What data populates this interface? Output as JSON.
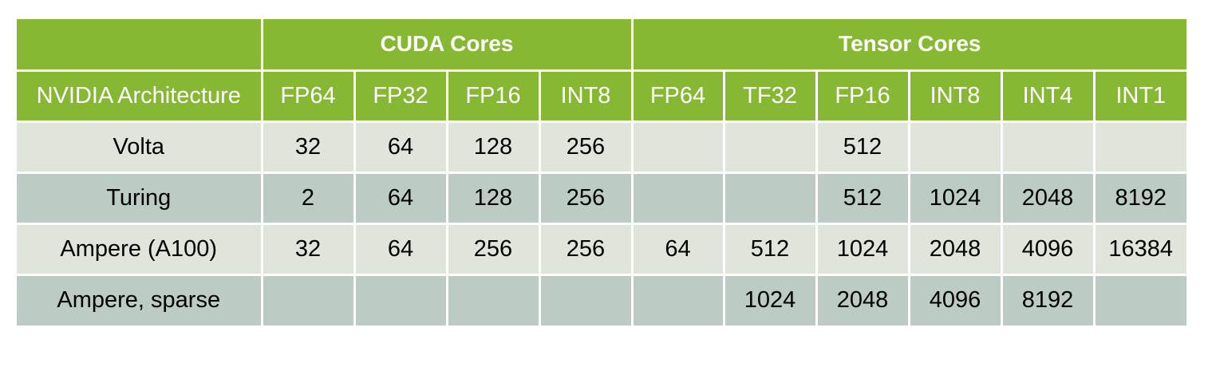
{
  "table": {
    "group_headers": {
      "corner": "",
      "cuda": "CUDA Cores",
      "tensor": "Tensor Cores"
    },
    "columns": [
      "NVIDIA Architecture",
      "FP64",
      "FP32",
      "FP16",
      "INT8",
      "FP64",
      "TF32",
      "FP16",
      "INT8",
      "INT4",
      "INT1"
    ],
    "rows": [
      [
        "Volta",
        "32",
        "64",
        "128",
        "256",
        "",
        "",
        "512",
        "",
        "",
        ""
      ],
      [
        "Turing",
        "2",
        "64",
        "128",
        "256",
        "",
        "",
        "512",
        "1024",
        "2048",
        "8192"
      ],
      [
        "Ampere (A100)",
        "32",
        "64",
        "256",
        "256",
        "64",
        "512",
        "1024",
        "2048",
        "4096",
        "16384"
      ],
      [
        "Ampere, sparse",
        "",
        "",
        "",
        "",
        "",
        "1024",
        "2048",
        "4096",
        "8192",
        ""
      ]
    ]
  },
  "colors": {
    "header_green": "#86b833",
    "row_light": "#dfe5da",
    "row_dark": "#bccbc3"
  }
}
